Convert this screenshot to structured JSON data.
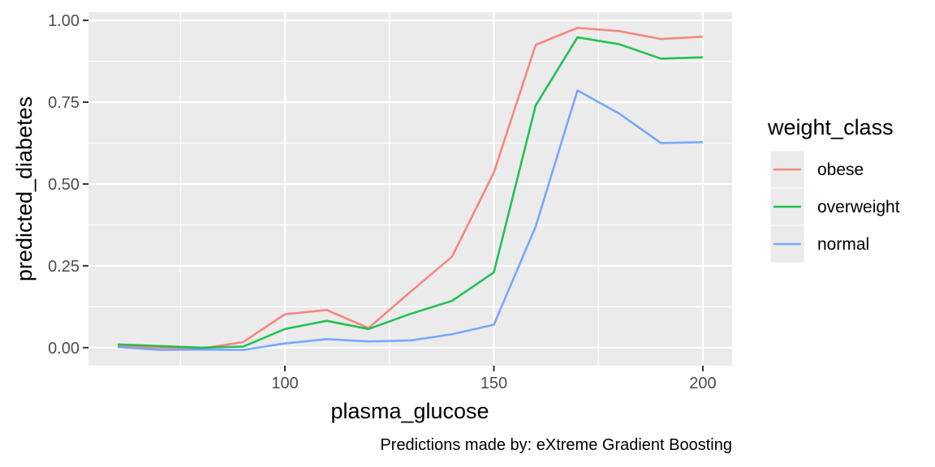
{
  "chart_data": {
    "type": "line",
    "title": "",
    "xlabel": "plasma_glucose",
    "ylabel": "predicted_diabetes",
    "caption": "Predictions made by: eXtreme Gradient Boosting",
    "xlim": [
      53,
      207
    ],
    "ylim": [
      -0.055,
      1.025
    ],
    "x_major_ticks": [
      100,
      150,
      200
    ],
    "x_minor_ticks": [
      75,
      125,
      175
    ],
    "x_tick_labels": [
      "100",
      "150",
      "200"
    ],
    "y_major_ticks": [
      0,
      0.25,
      0.5,
      0.75,
      1.0
    ],
    "y_tick_labels": [
      "0.00",
      "0.25",
      "0.50",
      "0.75",
      "1.00"
    ],
    "grid": true,
    "legend_title": "weight_class",
    "legend_position": "right",
    "x": [
      60,
      70,
      80,
      90,
      100,
      110,
      120,
      130,
      140,
      150,
      160,
      170,
      180,
      190,
      200
    ],
    "series": [
      {
        "name": "obese",
        "color": "#F8766D",
        "values": [
          0.005,
          0.0,
          -0.003,
          0.017,
          0.102,
          0.115,
          0.06,
          0.17,
          0.278,
          0.535,
          0.925,
          0.977,
          0.967,
          0.943,
          0.95
        ]
      },
      {
        "name": "overweight",
        "color": "#00BA38",
        "values": [
          0.01,
          0.005,
          0.0,
          0.003,
          0.057,
          0.082,
          0.057,
          0.103,
          0.143,
          0.23,
          0.74,
          0.948,
          0.927,
          0.883,
          0.887
        ]
      },
      {
        "name": "normal",
        "color": "#619CFF",
        "values": [
          0.002,
          -0.007,
          -0.006,
          -0.007,
          0.013,
          0.026,
          0.019,
          0.022,
          0.041,
          0.07,
          0.37,
          0.786,
          0.715,
          0.625,
          0.628
        ]
      }
    ]
  }
}
